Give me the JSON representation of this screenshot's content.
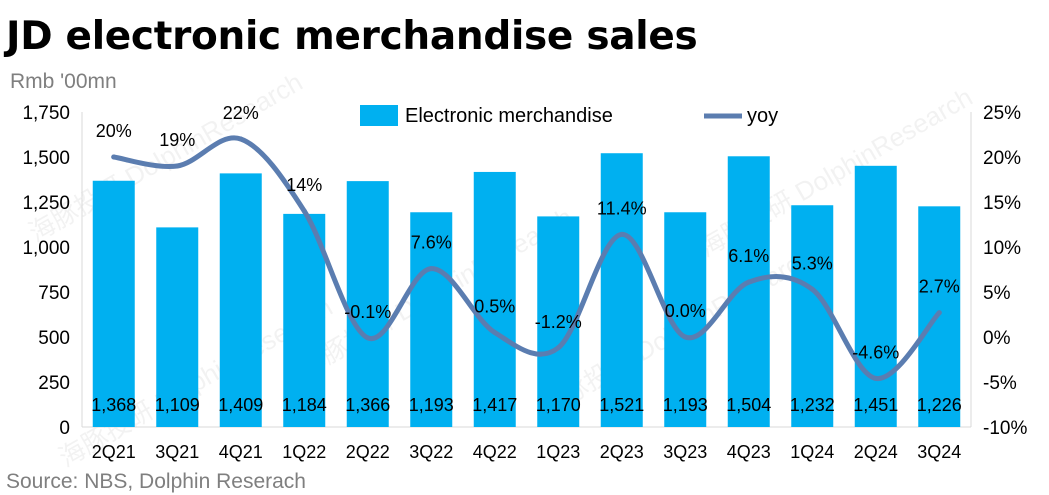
{
  "title": "JD electronic merchandise sales",
  "unit_label": "Rmb '00mn",
  "source": "Source: NBS, Dolphin Reserach",
  "watermark": "海豚投研 DolphinResearch",
  "colors": {
    "bar": "#00B0F0",
    "line": "#5B7DB0",
    "axis": "#d9d9d9",
    "text": "#000000",
    "grey_text": "#7f7f7f"
  },
  "chart_data": {
    "type": "bar",
    "categories": [
      "2Q21",
      "3Q21",
      "4Q21",
      "1Q22",
      "2Q22",
      "3Q22",
      "4Q22",
      "1Q23",
      "2Q23",
      "3Q23",
      "4Q23",
      "1Q24",
      "2Q24",
      "3Q24"
    ],
    "series": [
      {
        "name": "Electronic merchandise",
        "type": "bar",
        "axis": "left",
        "values": [
          1368,
          1109,
          1409,
          1184,
          1366,
          1193,
          1417,
          1170,
          1521,
          1193,
          1504,
          1232,
          1451,
          1226
        ],
        "labels": [
          "1,368",
          "1,109",
          "1,409",
          "1,184",
          "1,366",
          "1,193",
          "1,417",
          "1,170",
          "1,521",
          "1,193",
          "1,504",
          "1,232",
          "1,451",
          "1,226"
        ]
      },
      {
        "name": "yoy",
        "type": "line",
        "axis": "right",
        "values": [
          20,
          19,
          22,
          14,
          -0.1,
          7.6,
          0.5,
          -1.2,
          11.4,
          0.0,
          6.1,
          5.3,
          -4.6,
          2.7
        ],
        "labels": [
          "20%",
          "19%",
          "22%",
          "14%",
          "-0.1%",
          "7.6%",
          "0.5%",
          "-1.2%",
          "11.4%",
          "0.0%",
          "6.1%",
          "5.3%",
          "-4.6%",
          "2.7%"
        ]
      }
    ],
    "y_left": {
      "min": 0,
      "max": 1750,
      "ticks": [
        "0",
        "250",
        "500",
        "750",
        "1,000",
        "1,250",
        "1,500",
        "1,750"
      ]
    },
    "y_right": {
      "min": -10,
      "max": 25,
      "ticks": [
        "-10%",
        "-5%",
        "0%",
        "5%",
        "10%",
        "15%",
        "20%",
        "25%"
      ]
    },
    "legend_position": "top-center",
    "grid": false
  }
}
